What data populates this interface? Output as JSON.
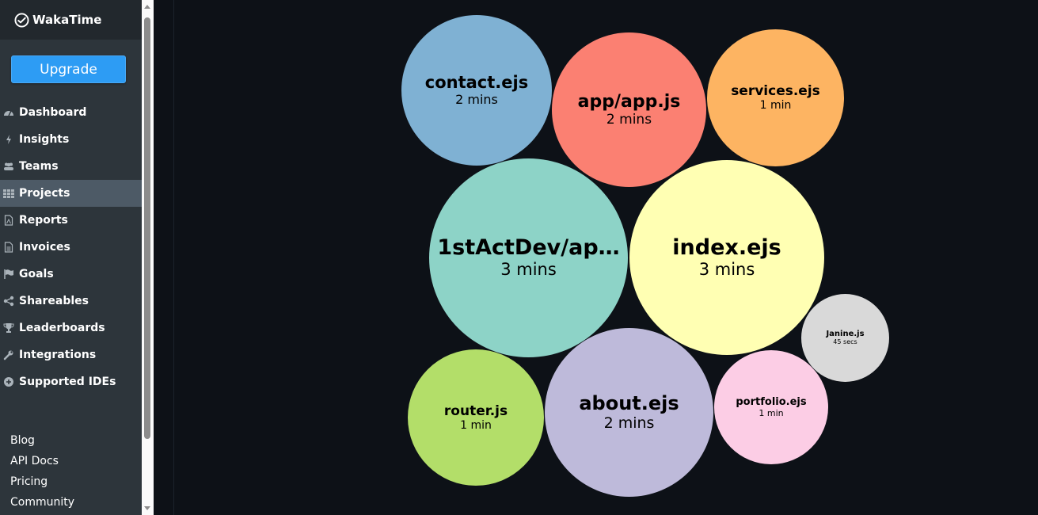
{
  "app": {
    "name": "WakaTime",
    "upgrade_label": "Upgrade"
  },
  "nav": [
    {
      "label": "Dashboard",
      "icon": "dashboard-icon"
    },
    {
      "label": "Insights",
      "icon": "bolt-icon"
    },
    {
      "label": "Teams",
      "icon": "users-icon"
    },
    {
      "label": "Projects",
      "icon": "grid-icon",
      "active": true
    },
    {
      "label": "Reports",
      "icon": "pdf-file-icon"
    },
    {
      "label": "Invoices",
      "icon": "invoice-icon"
    },
    {
      "label": "Goals",
      "icon": "flag-icon"
    },
    {
      "label": "Shareables",
      "icon": "share-icon"
    },
    {
      "label": "Leaderboards",
      "icon": "trophy-icon"
    },
    {
      "label": "Integrations",
      "icon": "wrench-icon"
    },
    {
      "label": "Supported IDEs",
      "icon": "plus-circle-icon"
    }
  ],
  "footer_links": [
    "Blog",
    "API Docs",
    "Pricing",
    "Community"
  ],
  "files": [
    {
      "name": "contact.ejs",
      "duration": "2 mins",
      "color": "#7fb1d3"
    },
    {
      "name": "app/app.js",
      "duration": "2 mins",
      "color": "#fb8072"
    },
    {
      "name": "services.ejs",
      "duration": "1 min",
      "color": "#fdb462"
    },
    {
      "name": "1stActDev/ap…",
      "duration": "3 mins",
      "color": "#8dd3c7"
    },
    {
      "name": "index.ejs",
      "duration": "3 mins",
      "color": "#ffffb3"
    },
    {
      "name": "Janine.js",
      "duration": "45 secs",
      "color": "#d9d9d9"
    },
    {
      "name": "router.js",
      "duration": "1 min",
      "color": "#b3de69"
    },
    {
      "name": "about.ejs",
      "duration": "2 mins",
      "color": "#bebada"
    },
    {
      "name": "portfolio.ejs",
      "duration": "1 min",
      "color": "#fccde5"
    }
  ]
}
